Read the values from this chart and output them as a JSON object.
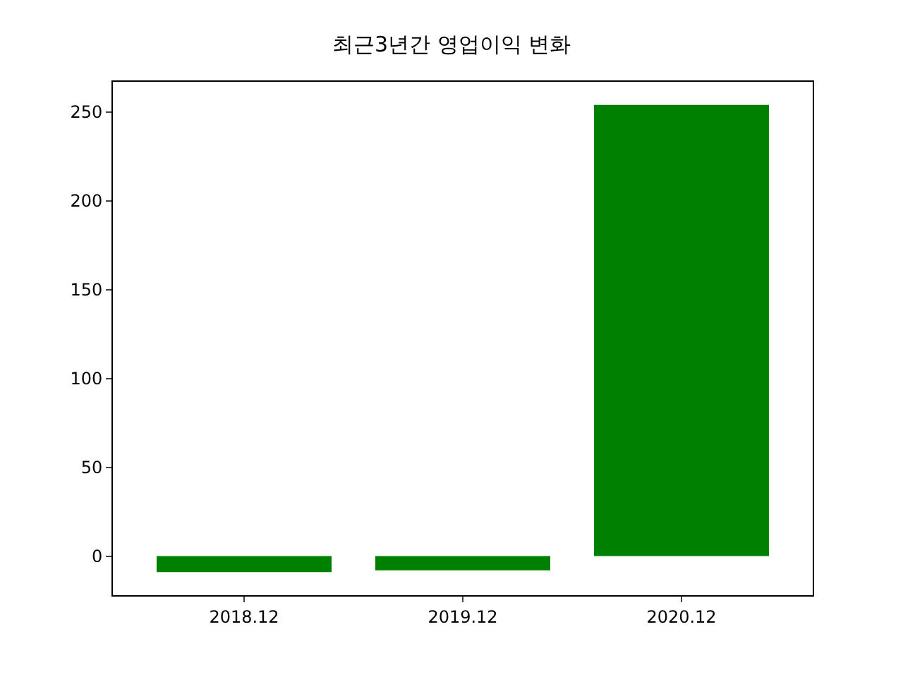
{
  "chart_data": {
    "type": "bar",
    "title": "최근3년간 영업이익 변화",
    "categories": [
      "2018.12",
      "2019.12",
      "2020.12"
    ],
    "values": [
      -9,
      -8,
      254
    ],
    "color": "#008000",
    "ylim": [
      -22,
      267
    ],
    "yticks": [
      0,
      50,
      100,
      150,
      200,
      250
    ]
  }
}
